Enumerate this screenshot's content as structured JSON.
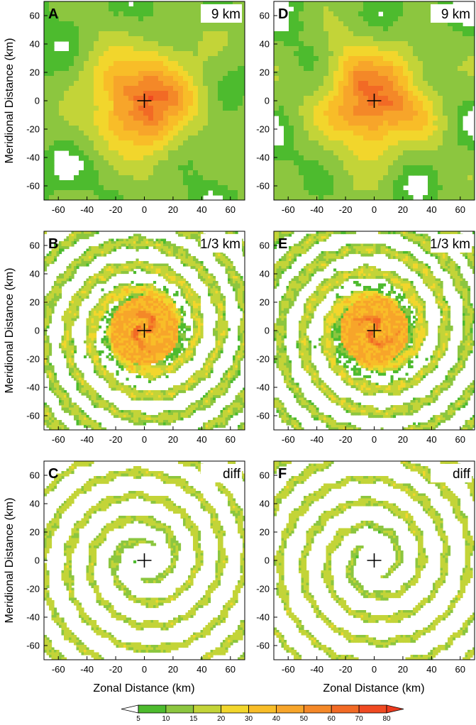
{
  "chart_data": {
    "type": "heatmap",
    "xlabel": "Zonal Distance (km)",
    "ylabel": "Meridional Distance (km)",
    "xlim": [
      -70,
      70
    ],
    "ylim": [
      -70,
      70
    ],
    "xticks": [
      -60,
      -40,
      -20,
      0,
      20,
      40,
      60
    ],
    "yticks": [
      -60,
      -40,
      -20,
      0,
      20,
      40,
      60
    ],
    "center_marker": [
      0,
      0
    ],
    "panels": [
      {
        "letter": "A",
        "label": "9 km",
        "kind": "smooth",
        "variant": 0
      },
      {
        "letter": "D",
        "label": "9 km",
        "kind": "smooth",
        "variant": 1
      },
      {
        "letter": "B",
        "label": "1/3 km",
        "kind": "spiral",
        "variant": 0
      },
      {
        "letter": "E",
        "label": "1/3 km",
        "kind": "spiral",
        "variant": 1
      },
      {
        "letter": "C",
        "label": "diff",
        "kind": "diff",
        "variant": 0
      },
      {
        "letter": "F",
        "label": "diff",
        "kind": "diff",
        "variant": 1
      }
    ],
    "colorbar": {
      "levels": [
        5,
        10,
        15,
        20,
        30,
        40,
        50,
        60,
        70,
        80
      ],
      "colors": [
        "#ffffff",
        "#4dbb2e",
        "#8cc63f",
        "#c3d438",
        "#f2d62c",
        "#f8bd28",
        "#f7a52a",
        "#f48828",
        "#f26a25",
        "#f04a22",
        "#ec3a1e"
      ]
    }
  }
}
